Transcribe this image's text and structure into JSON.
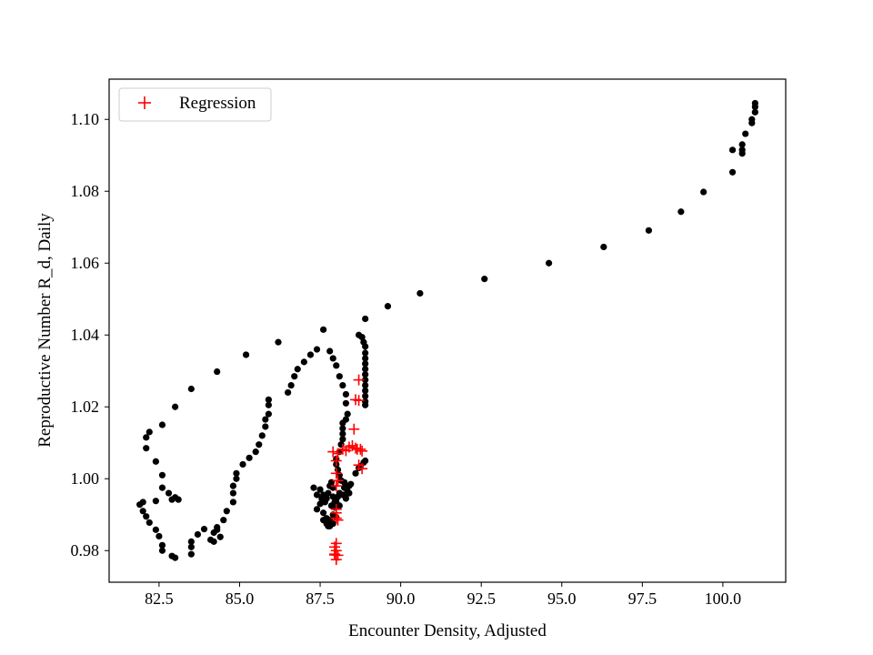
{
  "chart_data": {
    "type": "scatter",
    "title": "",
    "xlabel": "Encounter Density, Adjusted",
    "ylabel": "Reproductive Number R_d, Daily",
    "xlim": [
      80.95,
      101.95
    ],
    "ylim": [
      0.9712,
      1.1112
    ],
    "xticks": [
      82.5,
      85.0,
      87.5,
      90.0,
      92.5,
      95.0,
      97.5,
      100.0
    ],
    "xtick_labels": [
      "82.5",
      "85.0",
      "87.5",
      "90.0",
      "92.5",
      "95.0",
      "97.5",
      "100.0"
    ],
    "yticks": [
      0.98,
      1.0,
      1.02,
      1.04,
      1.06,
      1.08,
      1.1
    ],
    "ytick_labels": [
      "0.98",
      "1.00",
      "1.02",
      "1.04",
      "1.06",
      "1.08",
      "1.10"
    ],
    "grid": false,
    "legend": {
      "position": "top-left",
      "entries": [
        "Regression"
      ]
    },
    "series": [
      {
        "marker": "circle",
        "color": "#000000",
        "points": [
          [
            101.0,
            1.1045
          ],
          [
            101.0,
            1.1035
          ],
          [
            101.0,
            1.102
          ],
          [
            100.9,
            1.1
          ],
          [
            100.9,
            1.099
          ],
          [
            100.7,
            1.096
          ],
          [
            100.6,
            1.093
          ],
          [
            100.6,
            1.0915
          ],
          [
            100.6,
            1.0905
          ],
          [
            100.3,
            1.0915
          ],
          [
            100.3,
            1.0853
          ],
          [
            99.4,
            1.0798
          ],
          [
            98.7,
            1.0743
          ],
          [
            97.7,
            1.0691
          ],
          [
            96.3,
            1.0645
          ],
          [
            94.6,
            1.06
          ],
          [
            92.6,
            1.0556
          ],
          [
            90.6,
            1.0516
          ],
          [
            89.6,
            1.048
          ],
          [
            88.9,
            1.0445
          ],
          [
            88.7,
            1.04
          ],
          [
            88.8,
            1.0394
          ],
          [
            88.85,
            1.038
          ],
          [
            88.9,
            1.0368
          ],
          [
            88.9,
            1.035
          ],
          [
            88.9,
            1.0335
          ],
          [
            88.9,
            1.032
          ],
          [
            88.9,
            1.0305
          ],
          [
            88.9,
            1.029
          ],
          [
            88.9,
            1.0275
          ],
          [
            88.9,
            1.026
          ],
          [
            88.9,
            1.0245
          ],
          [
            88.9,
            1.023
          ],
          [
            88.9,
            1.0215
          ],
          [
            88.9,
            1.0205
          ],
          [
            87.6,
            1.0415
          ],
          [
            87.8,
            1.0355
          ],
          [
            87.9,
            1.0335
          ],
          [
            88.0,
            1.0315
          ],
          [
            88.1,
            1.0285
          ],
          [
            88.2,
            1.026
          ],
          [
            88.3,
            1.0235
          ],
          [
            88.3,
            1.021
          ],
          [
            88.35,
            1.018
          ],
          [
            88.3,
            1.0165
          ],
          [
            88.2,
            1.0155
          ],
          [
            88.2,
            1.014
          ],
          [
            88.2,
            1.0125
          ],
          [
            88.2,
            1.011
          ],
          [
            88.15,
            1.0095
          ],
          [
            88.1,
            1.0075
          ],
          [
            88.0,
            1.0055
          ],
          [
            88.0,
            1.004
          ],
          [
            88.05,
            1.0025
          ],
          [
            88.1,
            1.001
          ],
          [
            88.15,
            0.9995
          ],
          [
            88.25,
            0.999
          ],
          [
            88.3,
            0.998
          ],
          [
            88.35,
            0.9965
          ],
          [
            88.3,
            0.9955
          ],
          [
            87.4,
            1.036
          ],
          [
            87.2,
            1.0345
          ],
          [
            87.0,
            1.0325
          ],
          [
            86.8,
            1.0305
          ],
          [
            86.7,
            1.0285
          ],
          [
            86.6,
            1.026
          ],
          [
            86.5,
            1.024
          ],
          [
            86.2,
            1.038
          ],
          [
            85.9,
            1.022
          ],
          [
            85.9,
            1.0205
          ],
          [
            85.9,
            1.018
          ],
          [
            85.8,
            1.0165
          ],
          [
            85.8,
            1.0145
          ],
          [
            85.7,
            1.012
          ],
          [
            85.6,
            1.0095
          ],
          [
            85.5,
            1.0075
          ],
          [
            85.3,
            1.0058
          ],
          [
            85.1,
            1.004
          ],
          [
            84.9,
            1.0015
          ],
          [
            84.9,
            1.0
          ],
          [
            84.8,
            0.998
          ],
          [
            84.8,
            0.996
          ],
          [
            84.8,
            0.9935
          ],
          [
            84.6,
            0.991
          ],
          [
            84.5,
            0.9885
          ],
          [
            84.3,
            0.9865
          ],
          [
            84.2,
            0.985
          ],
          [
            84.1,
            0.983
          ],
          [
            84.2,
            0.9825
          ],
          [
            84.4,
            0.9838
          ],
          [
            84.3,
            0.9858
          ],
          [
            83.9,
            0.986
          ],
          [
            83.7,
            0.9845
          ],
          [
            83.5,
            0.9825
          ],
          [
            83.5,
            0.981
          ],
          [
            83.5,
            0.979
          ],
          [
            83.0,
            0.978
          ],
          [
            82.9,
            0.9785
          ],
          [
            82.6,
            0.98
          ],
          [
            82.6,
            0.9815
          ],
          [
            82.5,
            0.984
          ],
          [
            82.4,
            0.9858
          ],
          [
            82.2,
            0.9878
          ],
          [
            82.1,
            0.9895
          ],
          [
            82.0,
            0.991
          ],
          [
            81.9,
            0.9928
          ],
          [
            82.0,
            0.9935
          ],
          [
            82.4,
            0.9938
          ],
          [
            82.6,
            0.9975
          ],
          [
            82.8,
            0.996
          ],
          [
            83.0,
            0.9948
          ],
          [
            83.1,
            0.9942
          ],
          [
            82.9,
            0.9942
          ],
          [
            82.6,
            1.001
          ],
          [
            82.4,
            1.0048
          ],
          [
            82.1,
            1.0085
          ],
          [
            82.1,
            1.0115
          ],
          [
            82.2,
            1.013
          ],
          [
            82.6,
            1.015
          ],
          [
            83.0,
            1.02
          ],
          [
            83.5,
            1.025
          ],
          [
            84.3,
            1.0298
          ],
          [
            85.2,
            1.0345
          ],
          [
            87.3,
            0.9975
          ],
          [
            87.4,
            0.9955
          ],
          [
            87.5,
            0.997
          ],
          [
            87.6,
            0.9955
          ],
          [
            87.7,
            0.9945
          ],
          [
            87.75,
            0.996
          ],
          [
            87.8,
            0.998
          ],
          [
            87.85,
            0.999
          ],
          [
            87.9,
            0.9975
          ],
          [
            87.9,
            0.995
          ],
          [
            87.95,
            0.9935
          ],
          [
            88.0,
            0.9945
          ],
          [
            88.1,
            0.996
          ],
          [
            88.2,
            0.9955
          ],
          [
            88.3,
            0.9945
          ],
          [
            88.4,
            0.996
          ],
          [
            87.4,
            0.9915
          ],
          [
            87.5,
            0.993
          ],
          [
            87.6,
            0.9905
          ],
          [
            87.7,
            0.989
          ],
          [
            87.8,
            0.9885
          ],
          [
            87.8,
            0.9868
          ],
          [
            87.9,
            0.9875
          ],
          [
            87.9,
            0.99
          ],
          [
            87.95,
            0.992
          ],
          [
            88.0,
            0.9935
          ],
          [
            87.6,
            0.9885
          ],
          [
            87.7,
            0.9875
          ],
          [
            87.75,
            0.9868
          ],
          [
            88.0,
            0.9893
          ],
          [
            88.1,
            0.9925
          ],
          [
            87.55,
            0.9945
          ],
          [
            87.65,
            0.9935
          ],
          [
            87.85,
            0.9925
          ],
          [
            88.05,
            0.995
          ],
          [
            88.25,
            0.9975
          ],
          [
            88.4,
            0.998
          ],
          [
            88.45,
            0.9985
          ],
          [
            88.6,
            1.0015
          ],
          [
            88.7,
            1.003
          ],
          [
            88.75,
            1.0035
          ],
          [
            88.85,
            1.0045
          ],
          [
            88.9,
            1.005
          ]
        ]
      },
      {
        "name": "Regression",
        "marker": "plus",
        "color": "#ff0000",
        "points": [
          [
            88.7,
            1.0275
          ],
          [
            88.6,
            1.022
          ],
          [
            88.7,
            1.0218
          ],
          [
            88.55,
            1.0138
          ],
          [
            88.4,
            1.0088
          ],
          [
            88.5,
            1.0092
          ],
          [
            88.6,
            1.0085
          ],
          [
            88.65,
            1.0082
          ],
          [
            88.75,
            1.0082
          ],
          [
            88.8,
            1.0077
          ],
          [
            88.2,
            1.0082
          ],
          [
            88.3,
            1.0078
          ],
          [
            87.9,
            1.0075
          ],
          [
            88.05,
            1.007
          ],
          [
            88.0,
            1.005
          ],
          [
            88.8,
            1.0028
          ],
          [
            88.7,
            1.0038
          ],
          [
            88.0,
            1.0015
          ],
          [
            88.05,
            0.9995
          ],
          [
            88.0,
            0.998
          ],
          [
            88.0,
            0.9915
          ],
          [
            88.0,
            0.9905
          ],
          [
            88.0,
            0.989
          ],
          [
            88.05,
            0.9885
          ],
          [
            88.0,
            0.982
          ],
          [
            87.95,
            0.981
          ],
          [
            88.0,
            0.98
          ],
          [
            87.95,
            0.979
          ],
          [
            88.05,
            0.9787
          ],
          [
            88.0,
            0.9775
          ],
          [
            87.95,
            0.9788
          ]
        ]
      }
    ]
  }
}
